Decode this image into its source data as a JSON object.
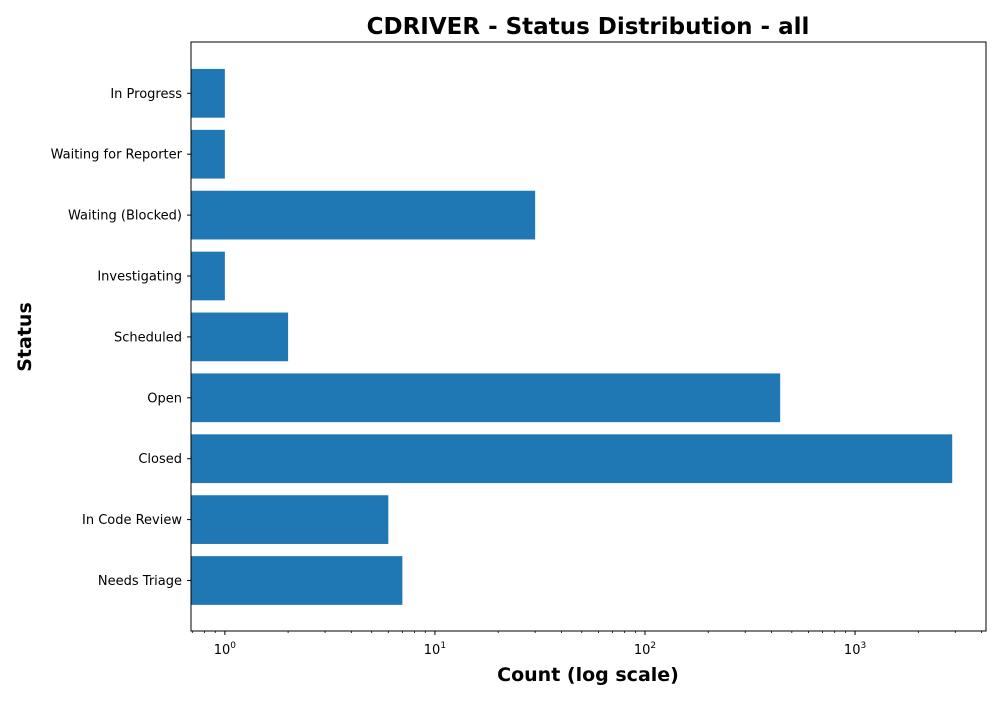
{
  "chart_data": {
    "type": "bar",
    "orientation": "horizontal",
    "title": "CDRIVER - Status Distribution - all",
    "xlabel": "Count (log scale)",
    "ylabel": "Status",
    "xscale": "log",
    "xlim": [
      0.69,
      4200
    ],
    "x_ticks": [
      {
        "value": 1,
        "base": "10",
        "exp": "0"
      },
      {
        "value": 10,
        "base": "10",
        "exp": "1"
      },
      {
        "value": 100,
        "base": "10",
        "exp": "2"
      },
      {
        "value": 1000,
        "base": "10",
        "exp": "3"
      }
    ],
    "categories": [
      "Needs Triage",
      "In Code Review",
      "Closed",
      "Open",
      "Scheduled",
      "Investigating",
      "Waiting (Blocked)",
      "Waiting for Reporter",
      "In Progress"
    ],
    "values": [
      7,
      6,
      2900,
      440,
      2,
      1,
      30,
      1,
      1
    ],
    "bar_color": "#1f77b4",
    "grid": false,
    "legend": "none"
  }
}
